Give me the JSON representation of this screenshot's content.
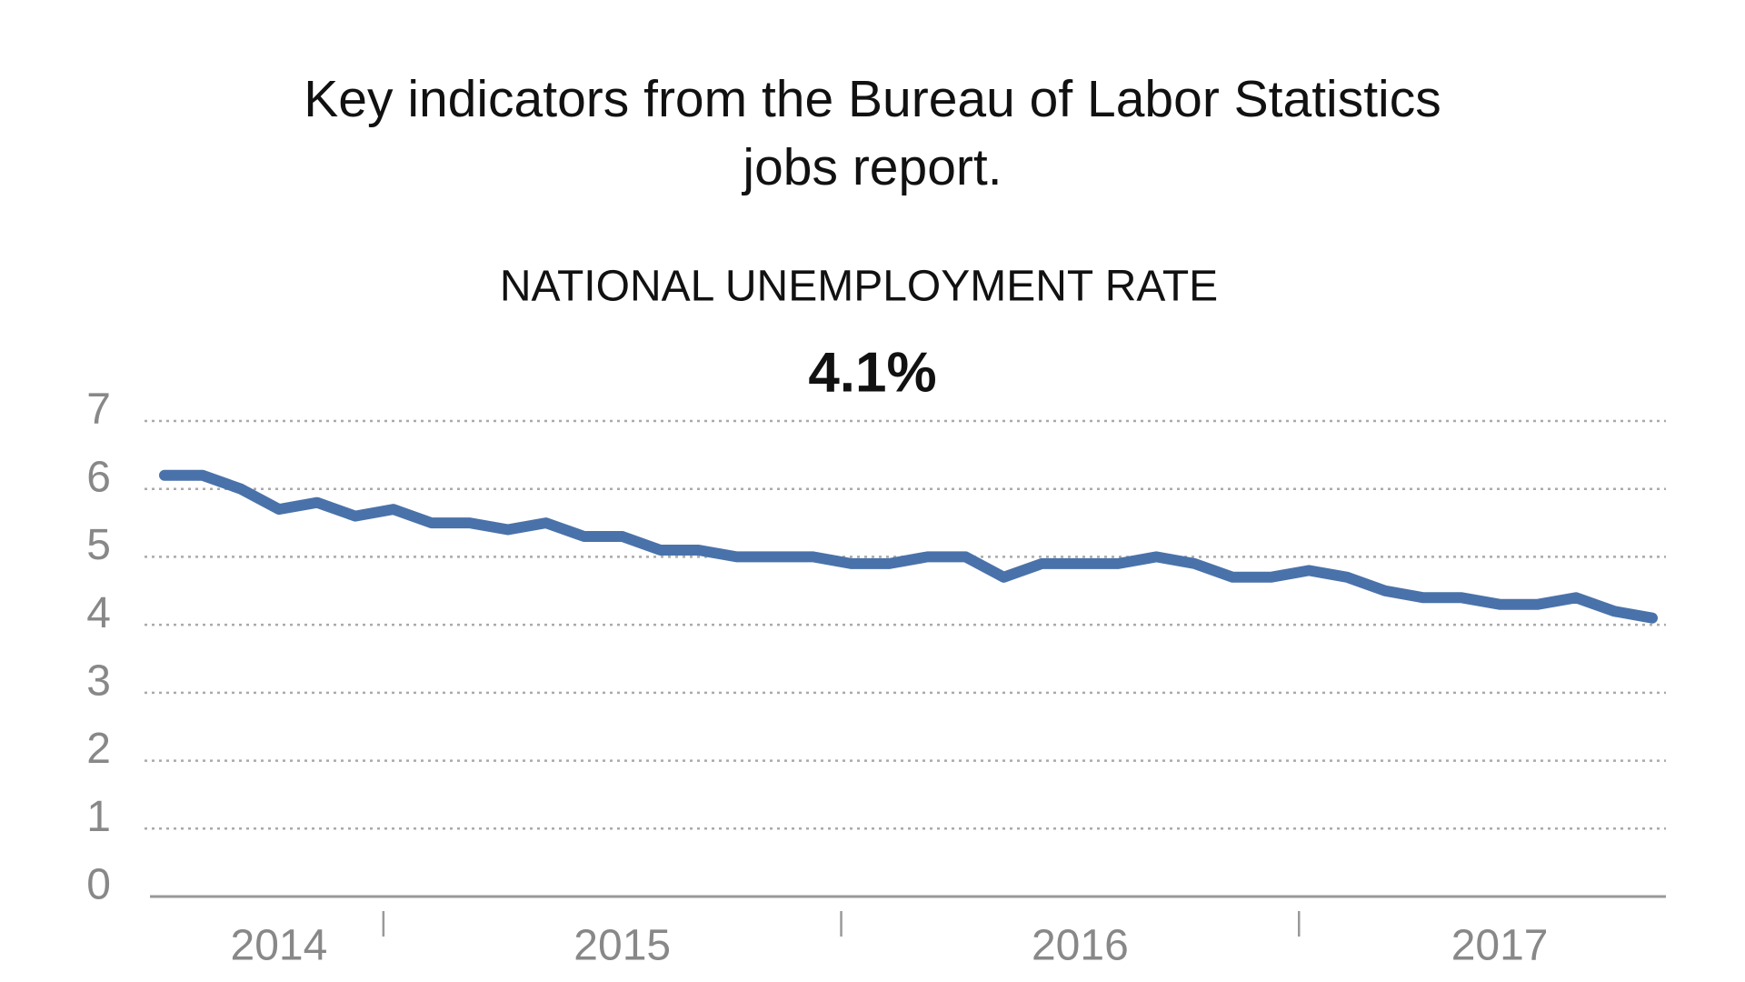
{
  "chart_data": {
    "type": "line",
    "subtitle": "Key indicators from the Bureau of Labor Statistics jobs report.",
    "title": "NATIONAL UNEMPLOYMENT RATE",
    "headline": "4.1%",
    "categories": [
      null,
      null,
      null,
      "2014",
      null,
      null,
      null,
      null,
      null,
      null,
      null,
      null,
      "2015",
      null,
      null,
      null,
      null,
      null,
      null,
      null,
      null,
      null,
      null,
      null,
      "2016",
      null,
      null,
      null,
      null,
      null,
      null,
      null,
      null,
      null,
      null,
      "2017",
      null,
      null,
      null,
      null
    ],
    "series": [
      {
        "color": "#4a72aa",
        "values": [
          6.2,
          6.2,
          6.0,
          5.7,
          5.8,
          5.6,
          5.7,
          5.5,
          5.5,
          5.4,
          5.5,
          5.3,
          5.3,
          5.1,
          5.1,
          5.0,
          5.0,
          5.0,
          4.9,
          4.9,
          5.0,
          5.0,
          4.7,
          4.9,
          4.9,
          4.9,
          5.0,
          4.9,
          4.7,
          4.7,
          4.8,
          4.7,
          4.5,
          4.4,
          4.4,
          4.3,
          4.3,
          4.4,
          4.2,
          4.1
        ]
      }
    ],
    "ylim": [
      0,
      7
    ],
    "yticks": [
      0,
      1,
      2,
      3,
      4,
      5,
      6,
      7
    ],
    "grid": true
  }
}
